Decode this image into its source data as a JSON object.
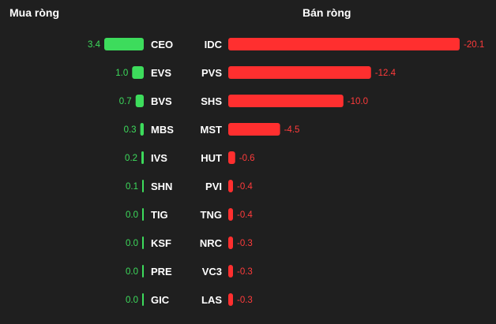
{
  "headings": {
    "buy": "Mua ròng",
    "sell": "Bán ròng"
  },
  "colors": {
    "buy": "#3ddc5c",
    "sell": "#ff2f2f",
    "background": "#1f1f1f",
    "text": "#ffffff"
  },
  "chart_data": [
    {
      "type": "bar",
      "orientation": "horizontal",
      "direction": "right-to-left",
      "categories": [
        "CEO",
        "EVS",
        "BVS",
        "MBS",
        "IVS",
        "SHN",
        "TIG",
        "KSF",
        "PRE",
        "GIC"
      ],
      "values": [
        3.4,
        1.0,
        0.7,
        0.3,
        0.2,
        0.1,
        0.0,
        0.0,
        0.0,
        0.0
      ],
      "value_labels": [
        "3.4",
        "1.0",
        "0.7",
        "0.3",
        "0.2",
        "0.1",
        "0.0",
        "0.0",
        "0.0",
        "0.0"
      ],
      "title": "Mua ròng",
      "grid": false
    },
    {
      "type": "bar",
      "orientation": "horizontal",
      "direction": "left-to-right",
      "categories": [
        "IDC",
        "PVS",
        "SHS",
        "MST",
        "HUT",
        "PVI",
        "TNG",
        "NRC",
        "VC3",
        "LAS"
      ],
      "values": [
        -20.1,
        -12.4,
        -10.0,
        -4.5,
        -0.6,
        -0.4,
        -0.4,
        -0.3,
        -0.3,
        -0.3
      ],
      "value_labels": [
        "-20.1",
        "-12.4",
        "-10.0",
        "-4.5",
        "-0.6",
        "-0.4",
        "-0.4",
        "-0.3",
        "-0.3",
        "-0.3"
      ],
      "title": "Bán ròng",
      "grid": false
    }
  ]
}
